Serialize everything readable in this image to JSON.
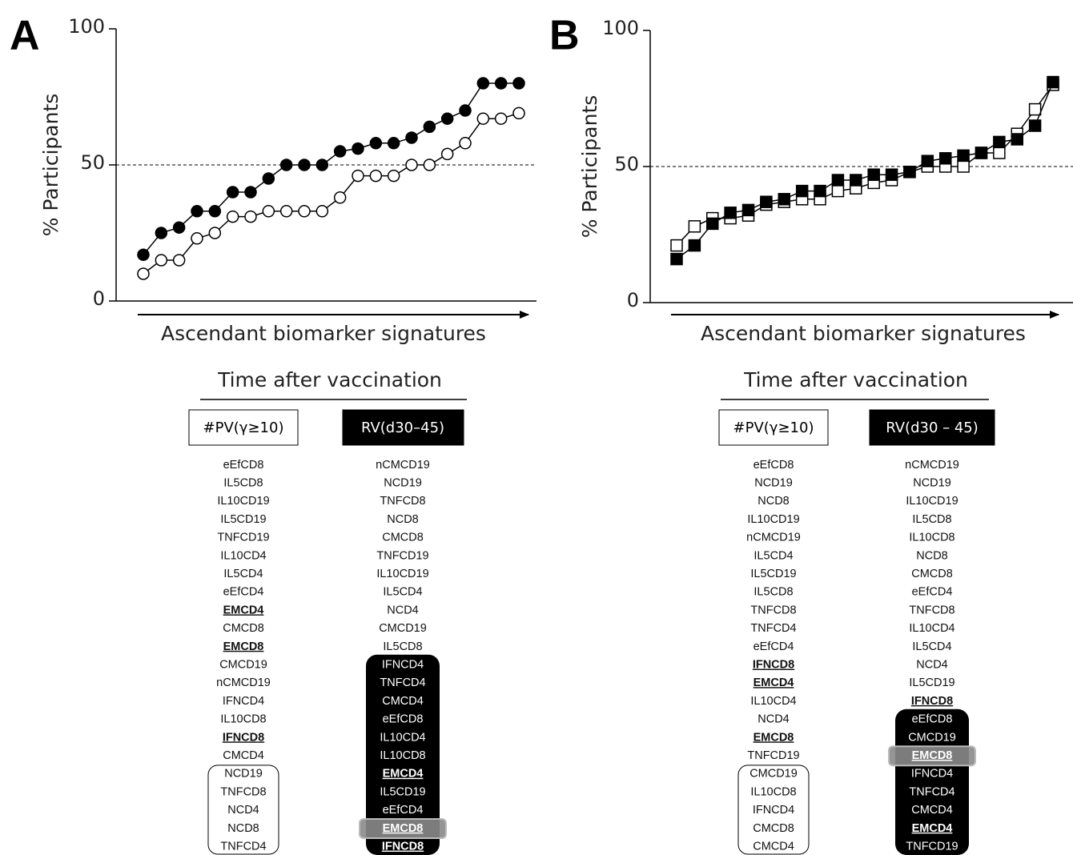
{
  "chart_data": [
    {
      "type": "line",
      "panel": "A",
      "ylabel": "% Participants",
      "xlabel": "Ascendant biomarker signatures",
      "ylim": [
        0,
        100
      ],
      "yticks": [
        0,
        50,
        100
      ],
      "refline": 50,
      "categories": [
        null,
        null,
        null,
        null,
        null,
        null,
        null,
        null,
        null,
        null,
        null,
        null,
        null,
        null,
        null,
        null,
        null,
        null,
        null,
        null,
        null,
        null
      ],
      "marker": "circle",
      "series": [
        {
          "color": "#000000",
          "fill": "#000000",
          "values": [
            17,
            25,
            27,
            33,
            33,
            40,
            40,
            45,
            50,
            50,
            50,
            55,
            56,
            58,
            58,
            60,
            64,
            67,
            70,
            80,
            80,
            80
          ]
        },
        {
          "color": "#000000",
          "fill": "#ffffff",
          "values": [
            10,
            15,
            15,
            23,
            25,
            31,
            31,
            33,
            33,
            33,
            33,
            38,
            46,
            46,
            46,
            50,
            50,
            54,
            58,
            67,
            67,
            69
          ]
        }
      ],
      "table": {
        "title": "Time after vaccination",
        "columns": [
          {
            "header": "#PV(γ≥10)",
            "header_style": "outline",
            "groups": [
              {
                "items": [
                  {
                    "text": "eEfCD8"
                  },
                  {
                    "text": "IL5CD8"
                  },
                  {
                    "text": "IL10CD19"
                  },
                  {
                    "text": "IL5CD19"
                  },
                  {
                    "text": "TNFCD19"
                  },
                  {
                    "text": "IL10CD4"
                  },
                  {
                    "text": "IL5CD4"
                  },
                  {
                    "text": "eEfCD4"
                  },
                  {
                    "text": "EMCD4",
                    "bold": true
                  },
                  {
                    "text": "CMCD8"
                  },
                  {
                    "text": "EMCD8",
                    "bold": true
                  },
                  {
                    "text": "CMCD19"
                  },
                  {
                    "text": "nCMCD19"
                  },
                  {
                    "text": "IFNCD4"
                  },
                  {
                    "text": "IL10CD8"
                  },
                  {
                    "text": "IFNCD8",
                    "bold": true
                  },
                  {
                    "text": "CMCD4"
                  }
                ]
              },
              {
                "box": "outline",
                "items": [
                  {
                    "text": "NCD19"
                  },
                  {
                    "text": "TNFCD8"
                  },
                  {
                    "text": "NCD4"
                  },
                  {
                    "text": "NCD8"
                  },
                  {
                    "text": "TNFCD4"
                  }
                ]
              }
            ]
          },
          {
            "header": "RV(d30–45)",
            "header_style": "dark",
            "groups": [
              {
                "items": [
                  {
                    "text": "nCMCD19"
                  },
                  {
                    "text": "NCD19"
                  },
                  {
                    "text": "TNFCD8"
                  },
                  {
                    "text": "NCD8"
                  },
                  {
                    "text": "CMCD8"
                  },
                  {
                    "text": "TNFCD19"
                  },
                  {
                    "text": "IL10CD19"
                  },
                  {
                    "text": "IL5CD4"
                  },
                  {
                    "text": "NCD4"
                  },
                  {
                    "text": "CMCD19"
                  },
                  {
                    "text": "IL5CD8"
                  }
                ]
              },
              {
                "box": "dark",
                "items": [
                  {
                    "text": "IFNCD4"
                  },
                  {
                    "text": "TNFCD4"
                  },
                  {
                    "text": "CMCD4"
                  },
                  {
                    "text": "eEfCD8"
                  },
                  {
                    "text": "IL10CD4"
                  },
                  {
                    "text": "IL10CD8"
                  },
                  {
                    "text": "EMCD4",
                    "bold": true
                  },
                  {
                    "text": "IL5CD19"
                  },
                  {
                    "text": "eEfCD4"
                  },
                  {
                    "text": "EMCD8",
                    "bold": true,
                    "highlight": true
                  },
                  {
                    "text": "IFNCD8",
                    "bold": true
                  }
                ]
              }
            ]
          }
        ]
      }
    },
    {
      "type": "line",
      "panel": "B",
      "ylabel": "% Participants",
      "xlabel": "Ascendant biomarker signatures",
      "ylim": [
        0,
        100
      ],
      "yticks": [
        0,
        50,
        100
      ],
      "refline": 50,
      "categories": [
        null,
        null,
        null,
        null,
        null,
        null,
        null,
        null,
        null,
        null,
        null,
        null,
        null,
        null,
        null,
        null,
        null,
        null,
        null,
        null,
        null,
        null
      ],
      "marker": "square",
      "series": [
        {
          "color": "#000000",
          "fill": "#ffffff",
          "values": [
            21,
            28,
            31,
            31,
            32,
            36,
            37,
            38,
            38,
            41,
            42,
            44,
            45,
            48,
            50,
            50,
            50,
            55,
            55,
            62,
            71,
            80
          ]
        },
        {
          "color": "#000000",
          "fill": "#000000",
          "values": [
            16,
            21,
            29,
            33,
            34,
            37,
            38,
            41,
            41,
            45,
            45,
            47,
            47,
            48,
            52,
            53,
            54,
            55,
            59,
            60,
            65,
            81
          ]
        }
      ],
      "table": {
        "title": "Time after vaccination",
        "columns": [
          {
            "header": "#PV(γ≥10)",
            "header_style": "outline",
            "groups": [
              {
                "items": [
                  {
                    "text": "eEfCD8"
                  },
                  {
                    "text": "NCD19"
                  },
                  {
                    "text": "NCD8"
                  },
                  {
                    "text": "IL10CD19"
                  },
                  {
                    "text": "nCMCD19"
                  },
                  {
                    "text": "IL5CD4"
                  },
                  {
                    "text": "IL5CD19"
                  },
                  {
                    "text": "IL5CD8"
                  },
                  {
                    "text": "TNFCD8"
                  },
                  {
                    "text": "TNFCD4"
                  },
                  {
                    "text": "eEfCD4"
                  },
                  {
                    "text": "IFNCD8",
                    "bold": true
                  },
                  {
                    "text": "EMCD4",
                    "bold": true
                  },
                  {
                    "text": "IL10CD4"
                  },
                  {
                    "text": "NCD4"
                  },
                  {
                    "text": "EMCD8",
                    "bold": true
                  },
                  {
                    "text": "TNFCD19"
                  }
                ]
              },
              {
                "box": "outline",
                "items": [
                  {
                    "text": "CMCD19"
                  },
                  {
                    "text": "IL10CD8"
                  },
                  {
                    "text": "IFNCD4"
                  },
                  {
                    "text": "CMCD8"
                  },
                  {
                    "text": "CMCD4"
                  }
                ]
              }
            ]
          },
          {
            "header": "RV(d30 – 45)",
            "header_style": "dark",
            "groups": [
              {
                "items": [
                  {
                    "text": "nCMCD19"
                  },
                  {
                    "text": "NCD19"
                  },
                  {
                    "text": "IL10CD19"
                  },
                  {
                    "text": "IL5CD8"
                  },
                  {
                    "text": "IL10CD8"
                  },
                  {
                    "text": "NCD8"
                  },
                  {
                    "text": "CMCD8"
                  },
                  {
                    "text": "eEfCD4"
                  },
                  {
                    "text": "TNFCD8"
                  },
                  {
                    "text": "IL10CD4"
                  },
                  {
                    "text": "IL5CD4"
                  },
                  {
                    "text": "NCD4"
                  },
                  {
                    "text": "IL5CD19"
                  },
                  {
                    "text": "IFNCD8",
                    "bold": true
                  }
                ]
              },
              {
                "box": "dark",
                "items": [
                  {
                    "text": "eEfCD8"
                  },
                  {
                    "text": "CMCD19"
                  },
                  {
                    "text": "EMCD8",
                    "bold": true,
                    "highlight": true
                  },
                  {
                    "text": "IFNCD4"
                  },
                  {
                    "text": "TNFCD4"
                  },
                  {
                    "text": "CMCD4"
                  },
                  {
                    "text": "EMCD4",
                    "bold": true
                  },
                  {
                    "text": "TNFCD19"
                  }
                ]
              }
            ]
          }
        ]
      }
    }
  ]
}
